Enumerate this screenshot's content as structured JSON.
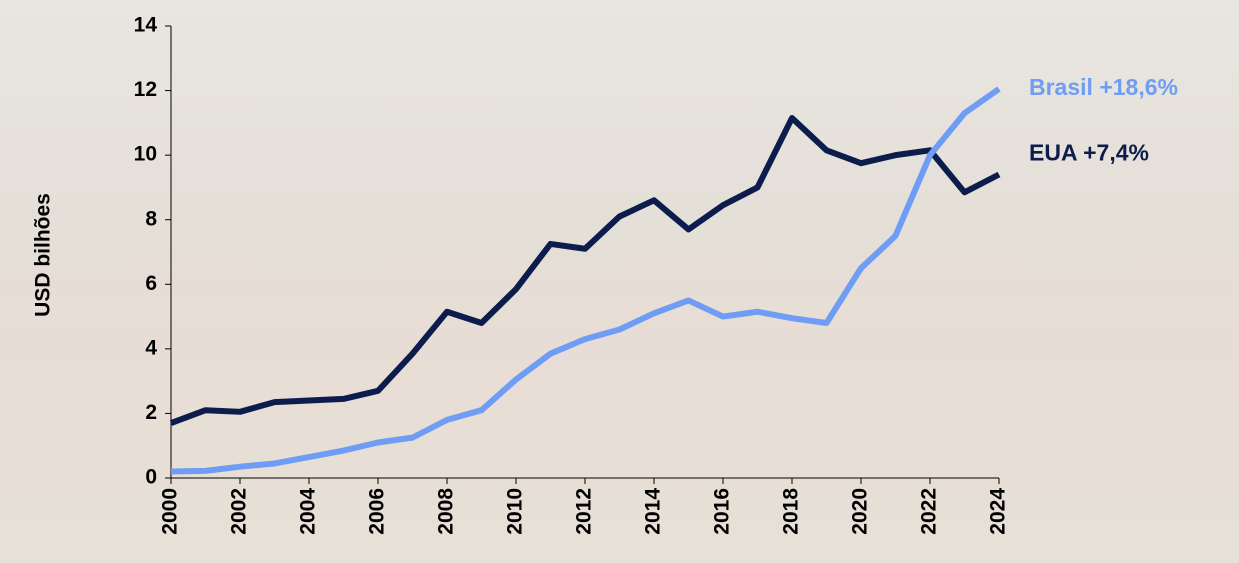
{
  "chart_data": {
    "type": "line",
    "ylabel": "USD bilhões",
    "x": [
      2000,
      2001,
      2002,
      2003,
      2004,
      2005,
      2006,
      2007,
      2008,
      2009,
      2010,
      2011,
      2012,
      2013,
      2014,
      2015,
      2016,
      2017,
      2018,
      2019,
      2020,
      2021,
      2022,
      2023,
      2024
    ],
    "series": [
      {
        "name": "EUA +7,4%",
        "color": "#0c1d4d",
        "values": [
          1.7,
          2.1,
          2.05,
          2.35,
          2.4,
          2.45,
          2.7,
          3.85,
          5.15,
          4.8,
          5.85,
          7.25,
          7.1,
          8.1,
          8.6,
          7.7,
          8.45,
          9.0,
          11.15,
          10.15,
          9.75,
          10.0,
          10.15,
          8.85,
          9.4
        ]
      },
      {
        "name": "Brasil +18,6%",
        "color": "#6f9df5",
        "values": [
          0.2,
          0.22,
          0.35,
          0.45,
          0.65,
          0.85,
          1.1,
          1.25,
          1.8,
          2.1,
          3.05,
          3.85,
          4.3,
          4.6,
          5.1,
          5.5,
          5.0,
          5.15,
          4.95,
          4.8,
          6.5,
          7.5,
          10.0,
          11.3,
          12.05
        ]
      }
    ],
    "xlim": [
      2000,
      2024
    ],
    "xticks": [
      2000,
      2002,
      2004,
      2006,
      2008,
      2010,
      2012,
      2014,
      2016,
      2018,
      2020,
      2022,
      2024
    ],
    "ylim": [
      0,
      14
    ],
    "yticks": [
      0,
      2,
      4,
      6,
      8,
      10,
      12,
      14
    ],
    "grid": false
  }
}
